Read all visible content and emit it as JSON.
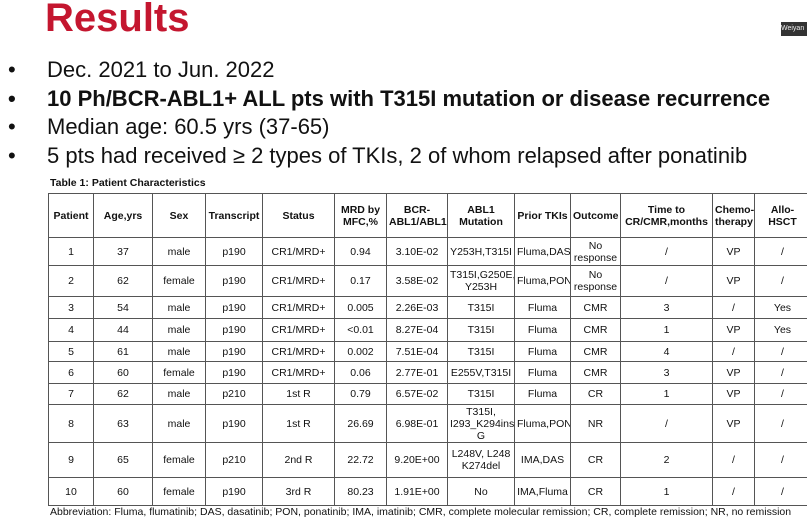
{
  "title": "Results",
  "corner_label": "Weiyan",
  "bullets": [
    "Dec. 2021 to Jun. 2022",
    "10 Ph/BCR-ABL1+ ALL pts with T315I mutation or disease recurrence",
    "Median age: 60.5 yrs (37-65)",
    "5 pts had received ≥ 2 types of TKIs, 2 of whom relapsed after ponatinib"
  ],
  "table": {
    "caption": "Table 1: Patient Characteristics",
    "header": [
      "Patient",
      "Age,yrs",
      "Sex",
      "Transcript",
      "Status",
      "MRD by MFC,%",
      "BCR-ABL1/ABL1",
      "ABL1 Mutation",
      "Prior TKIs",
      "Outcome",
      "Time to CR/CMR,months",
      "Chemo-therapy",
      "Allo-HSCT"
    ],
    "rows": [
      [
        "1",
        "37",
        "male",
        "p190",
        "CR1/MRD+",
        "0.94",
        "3.10E-02",
        "Y253H,T315I",
        "Fluma,DAS",
        "No response",
        "/",
        "VP",
        "/"
      ],
      [
        "2",
        "62",
        "female",
        "p190",
        "CR1/MRD+",
        "0.17",
        "3.58E-02",
        "T315I,G250E, Y253H",
        "Fluma,PON",
        "No response",
        "/",
        "VP",
        "/"
      ],
      [
        "3",
        "54",
        "male",
        "p190",
        "CR1/MRD+",
        "0.005",
        "2.26E-03",
        "T315I",
        "Fluma",
        "CMR",
        "3",
        "/",
        "Yes"
      ],
      [
        "4",
        "44",
        "male",
        "p190",
        "CR1/MRD+",
        "<0.01",
        "8.27E-04",
        "T315I",
        "Fluma",
        "CMR",
        "1",
        "VP",
        "Yes"
      ],
      [
        "5",
        "61",
        "male",
        "p190",
        "CR1/MRD+",
        "0.002",
        "7.51E-04",
        "T315I",
        "Fluma",
        "CMR",
        "4",
        "/",
        "/"
      ],
      [
        "6",
        "60",
        "female",
        "p190",
        "CR1/MRD+",
        "0.06",
        "2.77E-01",
        "E255V,T315I",
        "Fluma",
        "CMR",
        "3",
        "VP",
        "/"
      ],
      [
        "7",
        "62",
        "male",
        "p210",
        "1st R",
        "0.79",
        "6.57E-02",
        "T315I",
        "Fluma",
        "CR",
        "1",
        "VP",
        "/"
      ],
      [
        "8",
        "63",
        "male",
        "p190",
        "1st R",
        "26.69",
        "6.98E-01",
        "T315I, I293_K294ins G",
        "Fluma,PON",
        "NR",
        "/",
        "VP",
        "/"
      ],
      [
        "9",
        "65",
        "female",
        "p210",
        "2nd R",
        "22.72",
        "9.20E+00",
        "L248V, L248 K274del",
        "IMA,DAS",
        "CR",
        "2",
        "/",
        "/"
      ],
      [
        "10",
        "60",
        "female",
        "p190",
        "3rd R",
        "80.23",
        "1.91E+00",
        "No",
        "IMA,Fluma",
        "CR",
        "1",
        "/",
        "/"
      ]
    ],
    "footnote": "Abbreviation: Fluma, flumatinib; DAS, dasatinib; PON, ponatinib; IMA, imatinib; CMR, complete molecular remission; CR, complete remission; NR, no remission"
  }
}
